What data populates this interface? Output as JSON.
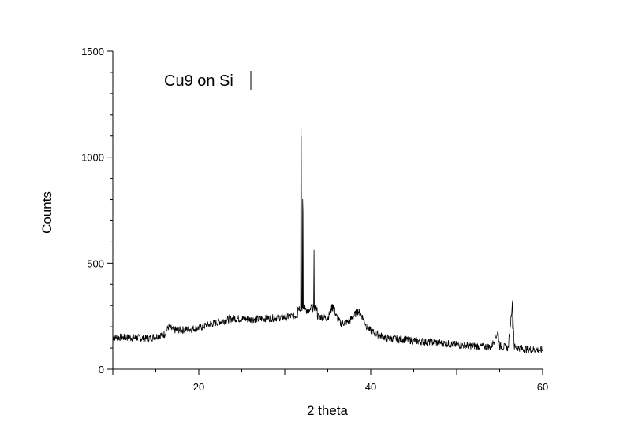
{
  "chart_data": {
    "type": "line",
    "title": "",
    "annotation": "Cu9 on Si",
    "xlabel": "2 theta",
    "ylabel": "Counts",
    "xlim": [
      10,
      60
    ],
    "ylim": [
      0,
      1500
    ],
    "xticks": [
      20,
      40,
      60
    ],
    "yticks": [
      0,
      500,
      1000,
      1500
    ],
    "grid": false,
    "series": [
      {
        "x": [
          10,
          12,
          14,
          16,
          16.5,
          17,
          18,
          20,
          22,
          24,
          26,
          28,
          30,
          31,
          31.5,
          31.9,
          32.1,
          32.5,
          33,
          33.4,
          33.8,
          35,
          35.6,
          36,
          36.5,
          37.5,
          38.5,
          39,
          39.5,
          40,
          41,
          42,
          44,
          46,
          48,
          50,
          52,
          54,
          54.8,
          55,
          56,
          56.5,
          56.7,
          58,
          60
        ],
        "y": [
          150,
          150,
          145,
          165,
          200,
          185,
          185,
          195,
          220,
          240,
          235,
          240,
          245,
          250,
          255,
          1135,
          765,
          275,
          270,
          565,
          250,
          240,
          305,
          250,
          215,
          225,
          275,
          250,
          205,
          180,
          160,
          145,
          140,
          130,
          125,
          115,
          110,
          105,
          175,
          110,
          100,
          325,
          105,
          95,
          90
        ]
      }
    ]
  }
}
